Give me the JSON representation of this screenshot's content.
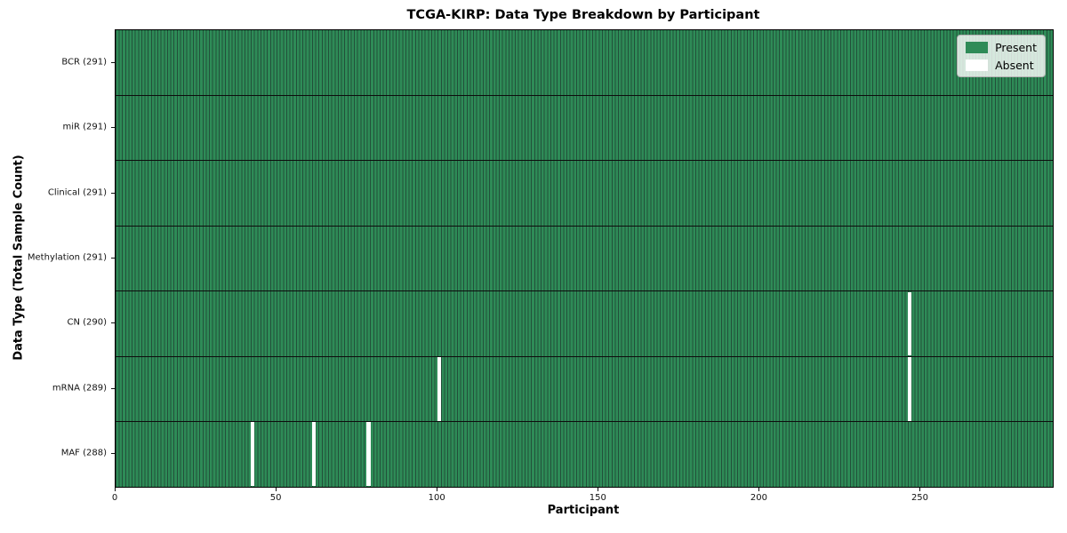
{
  "chart_data": {
    "type": "heatmap",
    "title": "TCGA-KIRP: Data Type Breakdown by Participant",
    "xlabel": "Participant",
    "ylabel": "Data Type (Total Sample Count)",
    "n_participants": 291,
    "xlim": [
      0,
      291
    ],
    "x_ticks": [
      0,
      50,
      100,
      150,
      200,
      250
    ],
    "grid": "row-boundaries-only",
    "legend_position": "upper right",
    "rows": [
      {
        "data_type": "BCR",
        "label": "BCR (291)",
        "present_count": 291,
        "absent_participants": []
      },
      {
        "data_type": "miR",
        "label": "miR (291)",
        "present_count": 291,
        "absent_participants": []
      },
      {
        "data_type": "Clinical",
        "label": "Clinical (291)",
        "present_count": 291,
        "absent_participants": []
      },
      {
        "data_type": "Methylation",
        "label": "Methylation (291)",
        "present_count": 291,
        "absent_participants": []
      },
      {
        "data_type": "CN",
        "label": "CN (290)",
        "present_count": 290,
        "absent_participants": [
          246
        ]
      },
      {
        "data_type": "mRNA",
        "label": "mRNA (289)",
        "present_count": 289,
        "absent_participants": [
          100,
          246
        ]
      },
      {
        "data_type": "MAF",
        "label": "MAF (288)",
        "present_count": 288,
        "absent_participants": [
          42,
          61,
          78
        ]
      }
    ],
    "legend": [
      {
        "label": "Present",
        "color": "#2e8b57"
      },
      {
        "label": "Absent",
        "color": "#ffffff"
      }
    ],
    "colors": {
      "present": "#2e8b57",
      "absent": "#ffffff",
      "cell_edge": "#22503a",
      "row_boundary": "#0d0d0d",
      "plot_border": "#000000"
    }
  }
}
